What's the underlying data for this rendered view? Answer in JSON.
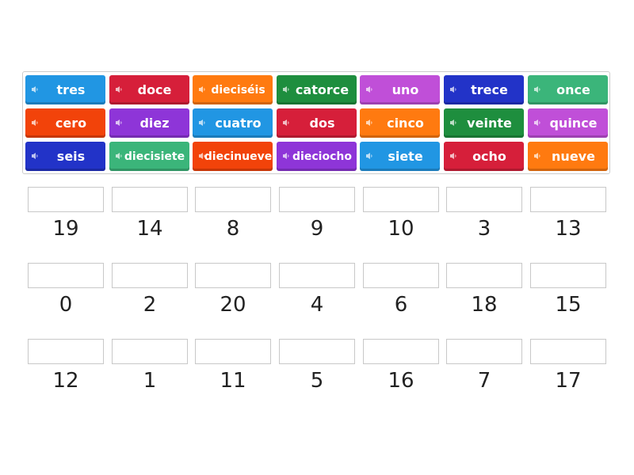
{
  "tiles": [
    [
      {
        "label": "tres",
        "color": "#2196e3"
      },
      {
        "label": "doce",
        "color": "#d61f3a"
      },
      {
        "label": "dieciséis",
        "color": "#ff7a10"
      },
      {
        "label": "catorce",
        "color": "#1e8e3e"
      },
      {
        "label": "uno",
        "color": "#c04fd8"
      },
      {
        "label": "trece",
        "color": "#2233c8"
      },
      {
        "label": "once",
        "color": "#3bb57a"
      }
    ],
    [
      {
        "label": "cero",
        "color": "#f2430a"
      },
      {
        "label": "diez",
        "color": "#8e35d8"
      },
      {
        "label": "cuatro",
        "color": "#2196e3"
      },
      {
        "label": "dos",
        "color": "#d61f3a"
      },
      {
        "label": "cinco",
        "color": "#ff7a10"
      },
      {
        "label": "veinte",
        "color": "#1e8e3e"
      },
      {
        "label": "quince",
        "color": "#c04fd8"
      }
    ],
    [
      {
        "label": "seis",
        "color": "#2233c8"
      },
      {
        "label": "diecisiete",
        "color": "#3bb57a"
      },
      {
        "label": "diecinueve",
        "color": "#f2430a"
      },
      {
        "label": "dieciocho",
        "color": "#8e35d8"
      },
      {
        "label": "siete",
        "color": "#2196e3"
      },
      {
        "label": "ocho",
        "color": "#d61f3a"
      },
      {
        "label": "nueve",
        "color": "#ff7a10"
      }
    ]
  ],
  "targets": [
    [
      "19",
      "14",
      "8",
      "9",
      "10",
      "3",
      "13"
    ],
    [
      "0",
      "2",
      "20",
      "4",
      "6",
      "18",
      "15"
    ],
    [
      "12",
      "1",
      "11",
      "5",
      "16",
      "7",
      "17"
    ]
  ]
}
